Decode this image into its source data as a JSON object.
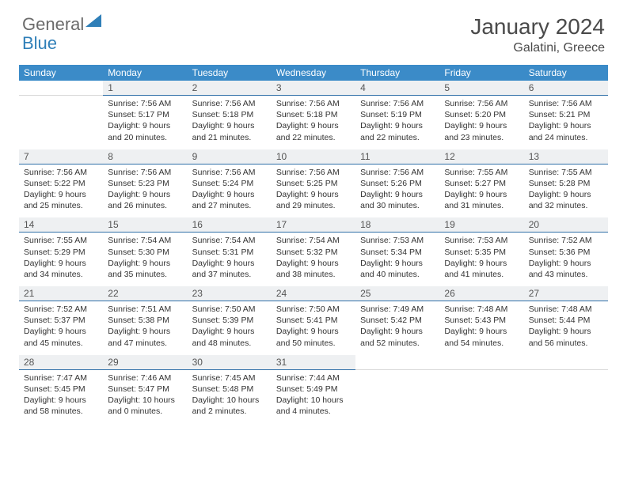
{
  "logo": {
    "text1": "General",
    "text2": "Blue"
  },
  "title": "January 2024",
  "location": "Galatini, Greece",
  "colors": {
    "header_bg": "#3b8bc8",
    "header_text": "#ffffff",
    "daynum_bg": "#eef0f2",
    "daynum_border": "#2f6fa8",
    "logo_gray": "#6b6b6b",
    "logo_blue": "#2f7fb8",
    "text": "#333333"
  },
  "day_headers": [
    "Sunday",
    "Monday",
    "Tuesday",
    "Wednesday",
    "Thursday",
    "Friday",
    "Saturday"
  ],
  "weeks": [
    {
      "nums": [
        "",
        "1",
        "2",
        "3",
        "4",
        "5",
        "6"
      ],
      "cells": [
        null,
        {
          "sr": "Sunrise: 7:56 AM",
          "ss": "Sunset: 5:17 PM",
          "dl": "Daylight: 9 hours and 20 minutes."
        },
        {
          "sr": "Sunrise: 7:56 AM",
          "ss": "Sunset: 5:18 PM",
          "dl": "Daylight: 9 hours and 21 minutes."
        },
        {
          "sr": "Sunrise: 7:56 AM",
          "ss": "Sunset: 5:18 PM",
          "dl": "Daylight: 9 hours and 22 minutes."
        },
        {
          "sr": "Sunrise: 7:56 AM",
          "ss": "Sunset: 5:19 PM",
          "dl": "Daylight: 9 hours and 22 minutes."
        },
        {
          "sr": "Sunrise: 7:56 AM",
          "ss": "Sunset: 5:20 PM",
          "dl": "Daylight: 9 hours and 23 minutes."
        },
        {
          "sr": "Sunrise: 7:56 AM",
          "ss": "Sunset: 5:21 PM",
          "dl": "Daylight: 9 hours and 24 minutes."
        }
      ]
    },
    {
      "nums": [
        "7",
        "8",
        "9",
        "10",
        "11",
        "12",
        "13"
      ],
      "cells": [
        {
          "sr": "Sunrise: 7:56 AM",
          "ss": "Sunset: 5:22 PM",
          "dl": "Daylight: 9 hours and 25 minutes."
        },
        {
          "sr": "Sunrise: 7:56 AM",
          "ss": "Sunset: 5:23 PM",
          "dl": "Daylight: 9 hours and 26 minutes."
        },
        {
          "sr": "Sunrise: 7:56 AM",
          "ss": "Sunset: 5:24 PM",
          "dl": "Daylight: 9 hours and 27 minutes."
        },
        {
          "sr": "Sunrise: 7:56 AM",
          "ss": "Sunset: 5:25 PM",
          "dl": "Daylight: 9 hours and 29 minutes."
        },
        {
          "sr": "Sunrise: 7:56 AM",
          "ss": "Sunset: 5:26 PM",
          "dl": "Daylight: 9 hours and 30 minutes."
        },
        {
          "sr": "Sunrise: 7:55 AM",
          "ss": "Sunset: 5:27 PM",
          "dl": "Daylight: 9 hours and 31 minutes."
        },
        {
          "sr": "Sunrise: 7:55 AM",
          "ss": "Sunset: 5:28 PM",
          "dl": "Daylight: 9 hours and 32 minutes."
        }
      ]
    },
    {
      "nums": [
        "14",
        "15",
        "16",
        "17",
        "18",
        "19",
        "20"
      ],
      "cells": [
        {
          "sr": "Sunrise: 7:55 AM",
          "ss": "Sunset: 5:29 PM",
          "dl": "Daylight: 9 hours and 34 minutes."
        },
        {
          "sr": "Sunrise: 7:54 AM",
          "ss": "Sunset: 5:30 PM",
          "dl": "Daylight: 9 hours and 35 minutes."
        },
        {
          "sr": "Sunrise: 7:54 AM",
          "ss": "Sunset: 5:31 PM",
          "dl": "Daylight: 9 hours and 37 minutes."
        },
        {
          "sr": "Sunrise: 7:54 AM",
          "ss": "Sunset: 5:32 PM",
          "dl": "Daylight: 9 hours and 38 minutes."
        },
        {
          "sr": "Sunrise: 7:53 AM",
          "ss": "Sunset: 5:34 PM",
          "dl": "Daylight: 9 hours and 40 minutes."
        },
        {
          "sr": "Sunrise: 7:53 AM",
          "ss": "Sunset: 5:35 PM",
          "dl": "Daylight: 9 hours and 41 minutes."
        },
        {
          "sr": "Sunrise: 7:52 AM",
          "ss": "Sunset: 5:36 PM",
          "dl": "Daylight: 9 hours and 43 minutes."
        }
      ]
    },
    {
      "nums": [
        "21",
        "22",
        "23",
        "24",
        "25",
        "26",
        "27"
      ],
      "cells": [
        {
          "sr": "Sunrise: 7:52 AM",
          "ss": "Sunset: 5:37 PM",
          "dl": "Daylight: 9 hours and 45 minutes."
        },
        {
          "sr": "Sunrise: 7:51 AM",
          "ss": "Sunset: 5:38 PM",
          "dl": "Daylight: 9 hours and 47 minutes."
        },
        {
          "sr": "Sunrise: 7:50 AM",
          "ss": "Sunset: 5:39 PM",
          "dl": "Daylight: 9 hours and 48 minutes."
        },
        {
          "sr": "Sunrise: 7:50 AM",
          "ss": "Sunset: 5:41 PM",
          "dl": "Daylight: 9 hours and 50 minutes."
        },
        {
          "sr": "Sunrise: 7:49 AM",
          "ss": "Sunset: 5:42 PM",
          "dl": "Daylight: 9 hours and 52 minutes."
        },
        {
          "sr": "Sunrise: 7:48 AM",
          "ss": "Sunset: 5:43 PM",
          "dl": "Daylight: 9 hours and 54 minutes."
        },
        {
          "sr": "Sunrise: 7:48 AM",
          "ss": "Sunset: 5:44 PM",
          "dl": "Daylight: 9 hours and 56 minutes."
        }
      ]
    },
    {
      "nums": [
        "28",
        "29",
        "30",
        "31",
        "",
        "",
        ""
      ],
      "cells": [
        {
          "sr": "Sunrise: 7:47 AM",
          "ss": "Sunset: 5:45 PM",
          "dl": "Daylight: 9 hours and 58 minutes."
        },
        {
          "sr": "Sunrise: 7:46 AM",
          "ss": "Sunset: 5:47 PM",
          "dl": "Daylight: 10 hours and 0 minutes."
        },
        {
          "sr": "Sunrise: 7:45 AM",
          "ss": "Sunset: 5:48 PM",
          "dl": "Daylight: 10 hours and 2 minutes."
        },
        {
          "sr": "Sunrise: 7:44 AM",
          "ss": "Sunset: 5:49 PM",
          "dl": "Daylight: 10 hours and 4 minutes."
        },
        null,
        null,
        null
      ]
    }
  ]
}
